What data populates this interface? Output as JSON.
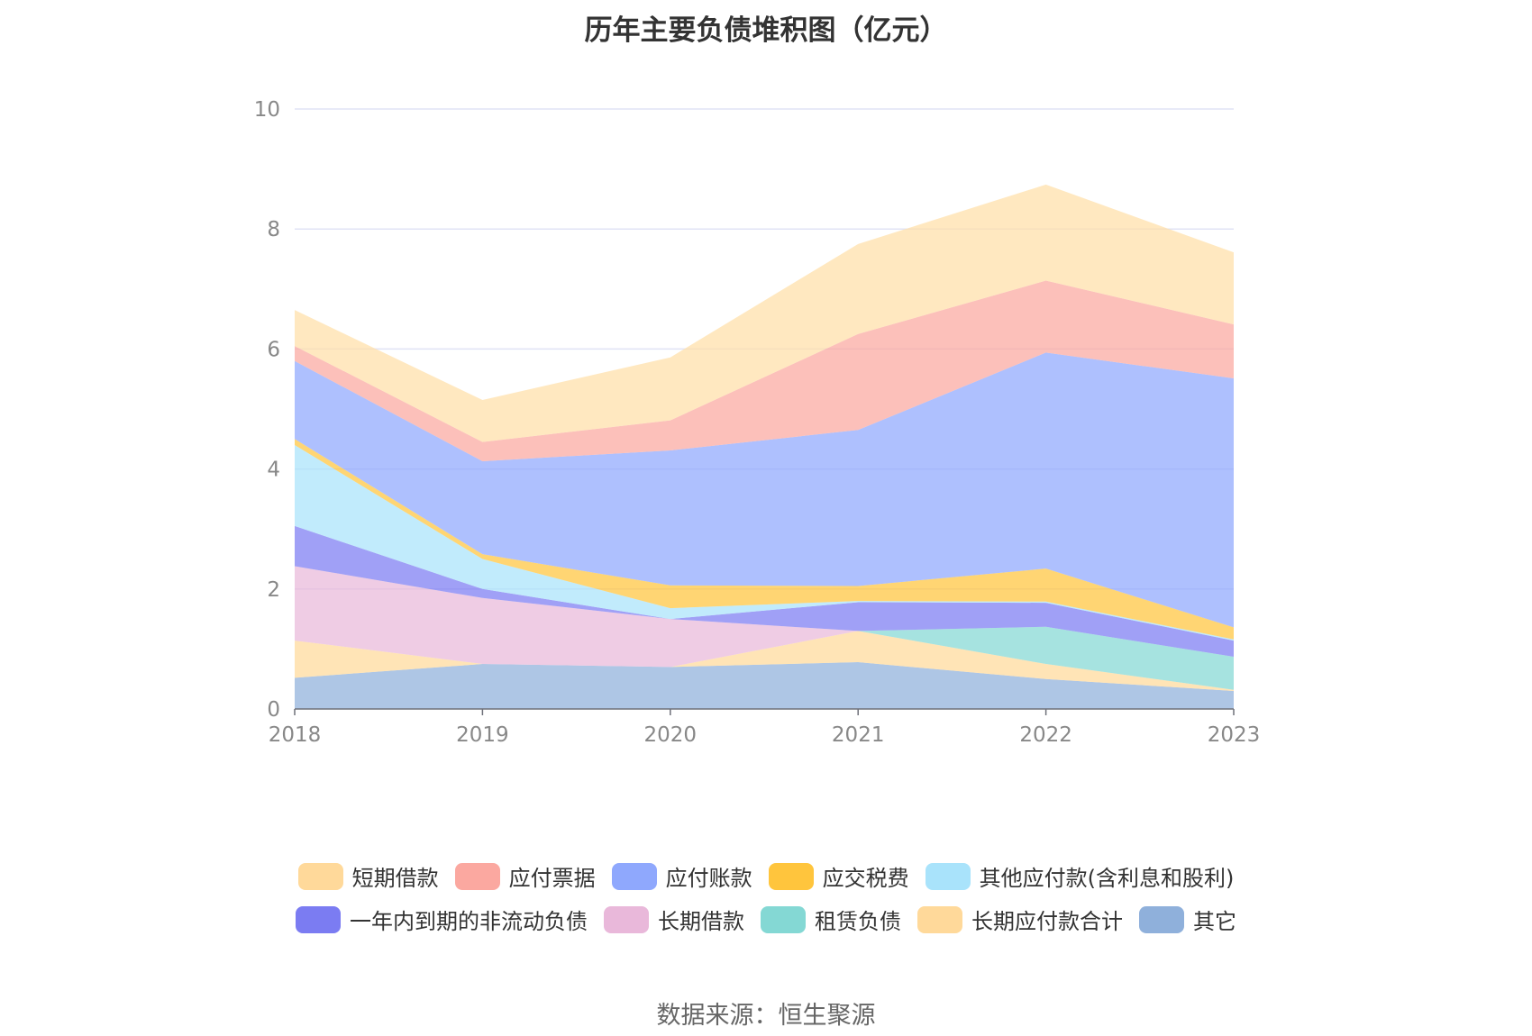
{
  "chart_data": {
    "type": "area",
    "stacked": true,
    "title": "历年主要负债堆积图（亿元）",
    "xlabel": "",
    "ylabel": "",
    "categories": [
      "2018",
      "2019",
      "2020",
      "2021",
      "2022",
      "2023"
    ],
    "ylim": [
      0,
      10
    ],
    "yticks": [
      "0",
      "2",
      "4",
      "6",
      "8",
      "10"
    ],
    "grid": true,
    "legend_position": "bottom",
    "series": [
      {
        "name": "其它",
        "color": "#8fb0db",
        "values": [
          0.52,
          0.75,
          0.7,
          0.78,
          0.5,
          0.3
        ]
      },
      {
        "name": "长期应付款合计",
        "color": "#ffd99a",
        "values": [
          0.62,
          0.0,
          0.0,
          0.52,
          0.25,
          0.02
        ]
      },
      {
        "name": "租赁负债",
        "color": "#84d8d4",
        "values": [
          0.0,
          0.0,
          0.0,
          0.0,
          0.62,
          0.55
        ]
      },
      {
        "name": "长期借款",
        "color": "#e9b8da",
        "values": [
          1.24,
          1.1,
          0.8,
          0.0,
          0.0,
          0.0
        ]
      },
      {
        "name": "一年内到期的非流动负债",
        "color": "#7b7cf2",
        "values": [
          0.67,
          0.15,
          0.0,
          0.48,
          0.4,
          0.27
        ]
      },
      {
        "name": "其他应付款(含利息和股利)",
        "color": "#a9e3fb",
        "values": [
          1.35,
          0.5,
          0.18,
          0.02,
          0.02,
          0.02
        ]
      },
      {
        "name": "应交税费",
        "color": "#ffc53d",
        "values": [
          0.1,
          0.08,
          0.38,
          0.25,
          0.55,
          0.2
        ]
      },
      {
        "name": "应付账款",
        "color": "#8fa8fd",
        "values": [
          1.3,
          1.55,
          2.25,
          2.6,
          3.6,
          4.15
        ]
      },
      {
        "name": "应付票据",
        "color": "#fba8a0",
        "values": [
          0.25,
          0.32,
          0.5,
          1.6,
          1.2,
          0.9
        ]
      },
      {
        "name": "短期借款",
        "color": "#ffdfa8",
        "values": [
          0.6,
          0.7,
          1.05,
          1.5,
          1.6,
          1.2
        ]
      }
    ]
  },
  "legend": {
    "row1": [
      {
        "label": "短期借款",
        "color": "#ffd99a"
      },
      {
        "label": "应付票据",
        "color": "#fba8a0"
      },
      {
        "label": "应付账款",
        "color": "#8fa8fd"
      },
      {
        "label": "应交税费",
        "color": "#ffc53d"
      },
      {
        "label": "其他应付款(含利息和股利)",
        "color": "#a9e3fb"
      }
    ],
    "row2": [
      {
        "label": "一年内到期的非流动负债",
        "color": "#7b7cf2"
      },
      {
        "label": "长期借款",
        "color": "#e9b8da"
      },
      {
        "label": "租赁负债",
        "color": "#84d8d4"
      },
      {
        "label": "长期应付款合计",
        "color": "#ffd99a"
      },
      {
        "label": "其它",
        "color": "#8fb0db"
      }
    ]
  },
  "source": "数据来源：恒生聚源"
}
